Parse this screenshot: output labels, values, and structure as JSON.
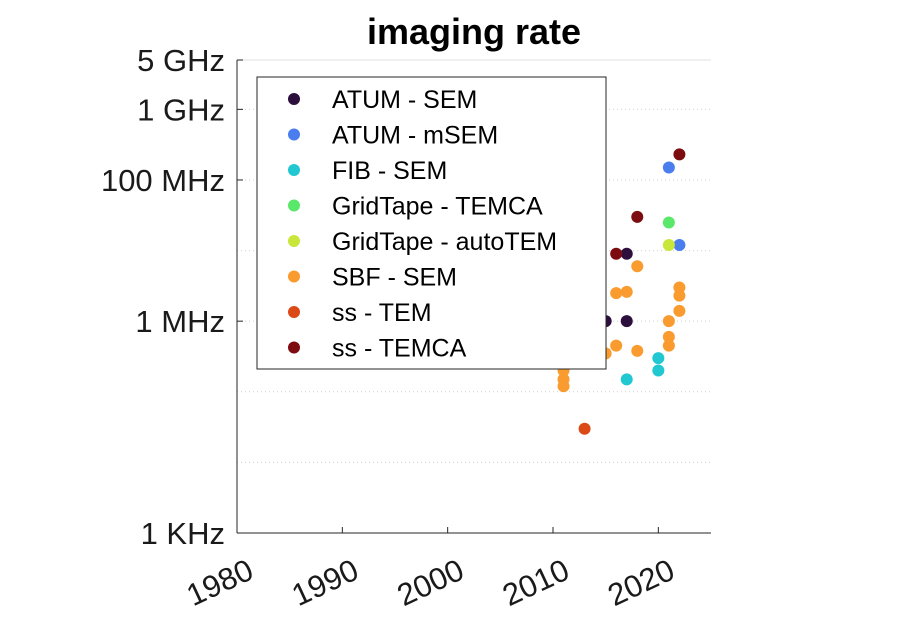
{
  "chart_data": {
    "type": "scatter",
    "title": "imaging rate",
    "xlabel": "",
    "ylabel": "",
    "xlim": [
      1980,
      2025
    ],
    "ylim": [
      1000,
      5000000000
    ],
    "yscale": "log",
    "x_ticks": [
      1980,
      1990,
      2000,
      2010,
      2020
    ],
    "x_tick_labels": [
      "1980",
      "1990",
      "2000",
      "2010",
      "2020"
    ],
    "y_ticks": [
      1000,
      1000000,
      100000000,
      1000000000,
      5000000000
    ],
    "y_tick_labels": [
      "1 KHz",
      "1 MHz",
      "100 MHz",
      "1 GHz",
      "5 GHz"
    ],
    "grid": true,
    "legend_position": "top-left",
    "series": [
      {
        "name": "ATUM - SEM",
        "color": "#2d0f3d",
        "points": [
          [
            2015,
            1000000
          ],
          [
            2017,
            1000000
          ],
          [
            2017,
            9000000
          ]
        ]
      },
      {
        "name": "ATUM - mSEM",
        "color": "#4a7ded",
        "points": [
          [
            2021,
            150000000
          ],
          [
            2022,
            12000000
          ]
        ]
      },
      {
        "name": "FIB - SEM",
        "color": "#22c8d1",
        "points": [
          [
            2017,
            150000
          ],
          [
            2020,
            300000
          ],
          [
            2020,
            200000
          ]
        ]
      },
      {
        "name": "GridTape - TEMCA",
        "color": "#5ae86a",
        "points": [
          [
            2021,
            25000000
          ]
        ]
      },
      {
        "name": "GridTape - autoTEM",
        "color": "#c9e63a",
        "points": [
          [
            2021,
            12000000
          ]
        ]
      },
      {
        "name": "SBF - SEM",
        "color": "#f99b2e",
        "points": [
          [
            2011,
            200000
          ],
          [
            2011,
            150000
          ],
          [
            2011,
            120000
          ],
          [
            2015,
            350000
          ],
          [
            2016,
            2500000
          ],
          [
            2016,
            450000
          ],
          [
            2017,
            2600000
          ],
          [
            2018,
            6000000
          ],
          [
            2018,
            380000
          ],
          [
            2021,
            1000000
          ],
          [
            2021,
            600000
          ],
          [
            2021,
            450000
          ],
          [
            2022,
            3000000
          ],
          [
            2022,
            2300000
          ],
          [
            2022,
            1400000
          ]
        ]
      },
      {
        "name": "ss - TEM",
        "color": "#db4a16",
        "points": [
          [
            2013,
            30000
          ]
        ]
      },
      {
        "name": "ss - TEMCA",
        "color": "#7d0c10",
        "points": [
          [
            2016,
            9000000
          ],
          [
            2018,
            30000000
          ],
          [
            2022,
            230000000
          ]
        ]
      }
    ]
  }
}
